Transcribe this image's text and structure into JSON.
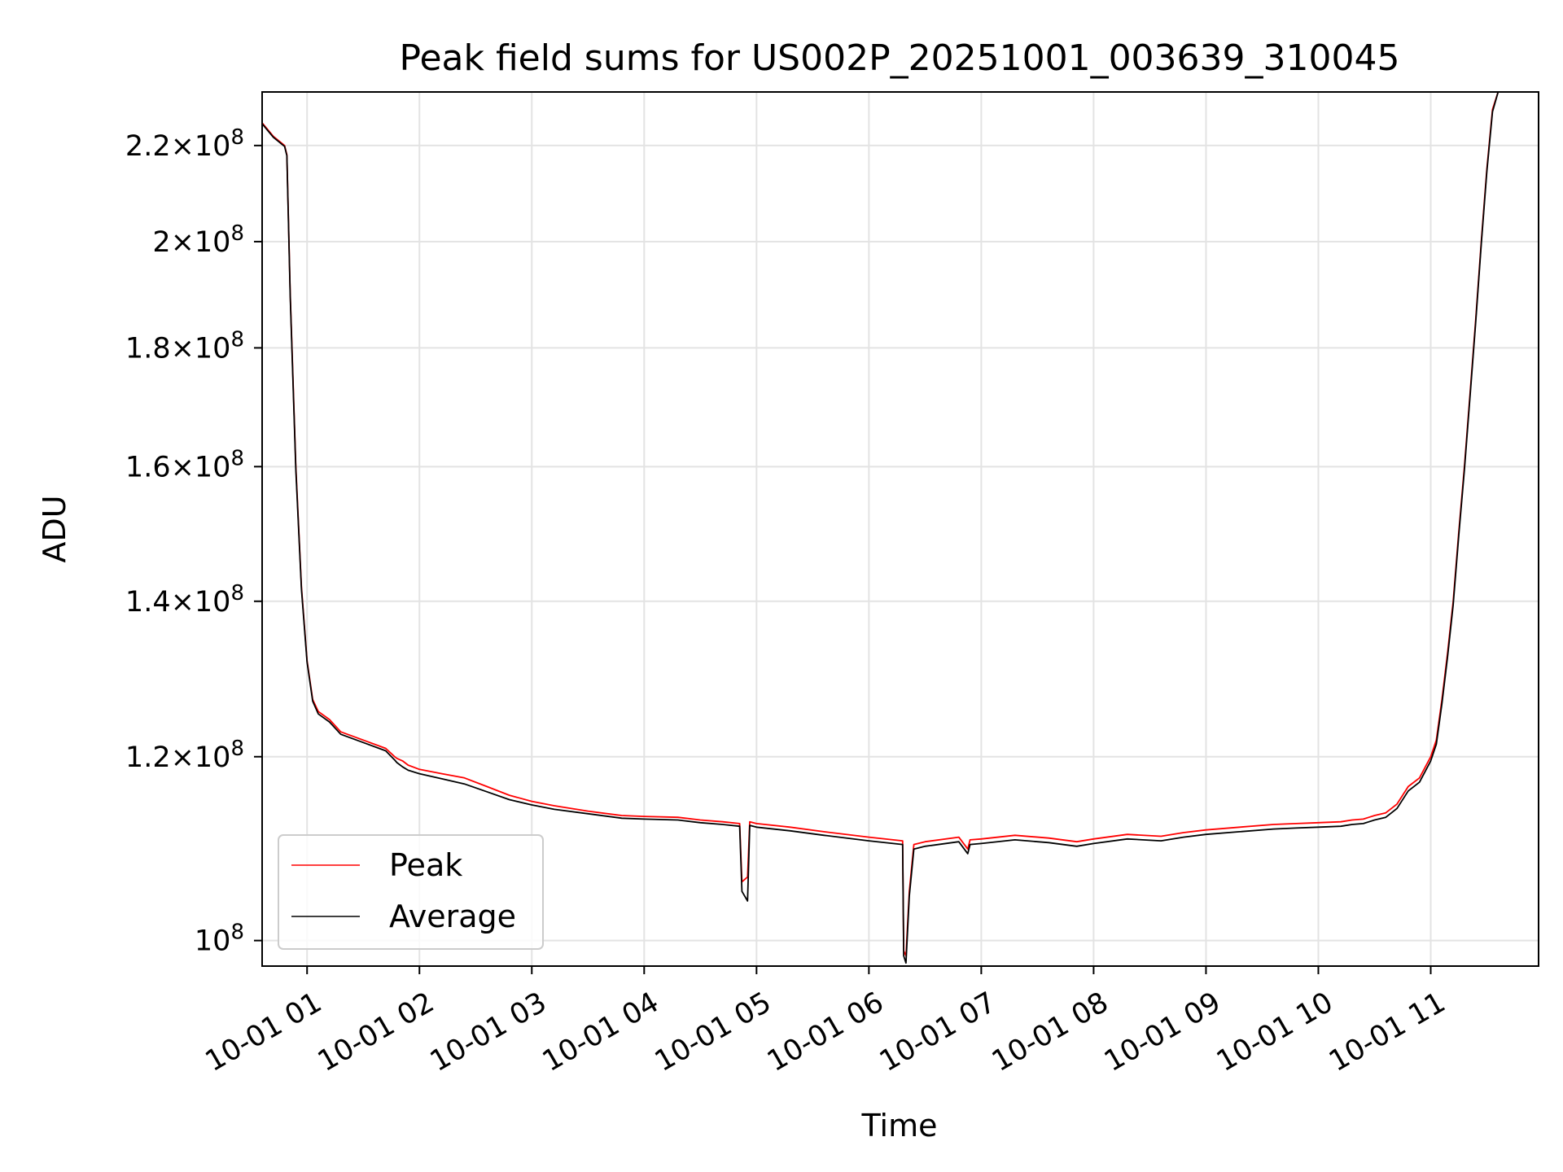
{
  "chart_data": {
    "type": "line",
    "title": "Peak field sums for US002P_20251001_003639_310045",
    "xlabel": "Time",
    "ylabel": "ADU",
    "yscale": "log",
    "xlim": [
      0.6,
      11.96
    ],
    "ylim": [
      97500000.0,
      232000000.0
    ],
    "grid": true,
    "legend_position": "lower-left",
    "x_ticks": [
      {
        "value": 1,
        "label": "10-01 01"
      },
      {
        "value": 2,
        "label": "10-01 02"
      },
      {
        "value": 3,
        "label": "10-01 03"
      },
      {
        "value": 4,
        "label": "10-01 04"
      },
      {
        "value": 5,
        "label": "10-01 05"
      },
      {
        "value": 6,
        "label": "10-01 06"
      },
      {
        "value": 7,
        "label": "10-01 07"
      },
      {
        "value": 8,
        "label": "10-01 08"
      },
      {
        "value": 9,
        "label": "10-01 09"
      },
      {
        "value": 10,
        "label": "10-01 10"
      },
      {
        "value": 11,
        "label": "10-01 11"
      }
    ],
    "y_ticks": [
      {
        "value": 100000000,
        "mantissa": "",
        "exponent": "8"
      },
      {
        "value": 120000000,
        "mantissa": "1.2",
        "exponent": "8"
      },
      {
        "value": 140000000,
        "mantissa": "1.4",
        "exponent": "8"
      },
      {
        "value": 160000000,
        "mantissa": "1.6",
        "exponent": "8"
      },
      {
        "value": 180000000,
        "mantissa": "1.8",
        "exponent": "8"
      },
      {
        "value": 200000000,
        "mantissa": "2",
        "exponent": "8"
      },
      {
        "value": 220000000,
        "mantissa": "2.2",
        "exponent": "8"
      }
    ],
    "series": [
      {
        "name": "Peak",
        "color": "#ff0000",
        "x": [
          0.6,
          0.7,
          0.8,
          0.82,
          0.85,
          0.9,
          0.95,
          1.0,
          1.05,
          1.1,
          1.2,
          1.3,
          1.5,
          1.7,
          1.78,
          1.8,
          1.85,
          1.9,
          2.0,
          2.2,
          2.4,
          2.6,
          2.8,
          3.0,
          3.2,
          3.5,
          3.8,
          4.0,
          4.3,
          4.5,
          4.7,
          4.85,
          4.87,
          4.92,
          4.94,
          5.0,
          5.3,
          5.6,
          6.0,
          6.3,
          6.31,
          6.33,
          6.36,
          6.4,
          6.5,
          6.8,
          6.88,
          6.9,
          7.0,
          7.3,
          7.6,
          7.85,
          8.0,
          8.3,
          8.6,
          8.8,
          9.0,
          9.3,
          9.6,
          9.8,
          10.0,
          10.2,
          10.3,
          10.4,
          10.45,
          10.5,
          10.6,
          10.7,
          10.8,
          10.9,
          11.0,
          11.05,
          11.1,
          11.15,
          11.2,
          11.25,
          11.3,
          11.35,
          11.4,
          11.45,
          11.5,
          11.55,
          11.6,
          11.7,
          11.96
        ],
        "values": [
          225000000,
          222000000,
          220000000,
          218000000,
          190000000,
          160000000,
          142000000,
          132000000,
          127000000,
          125500000,
          124500000,
          123000000,
          122000000,
          121000000,
          120000000,
          119800000,
          119500000,
          119000000,
          118500000,
          118000000,
          117500000,
          116500000,
          115500000,
          114800000,
          114300000,
          113700000,
          113200000,
          113100000,
          113000000,
          112700000,
          112500000,
          112300000,
          106000000,
          106500000,
          112500000,
          112300000,
          111900000,
          111400000,
          110800000,
          110400000,
          99000000,
          98500000,
          105000000,
          110000000,
          110300000,
          110800000,
          109500000,
          110500000,
          110600000,
          111000000,
          110700000,
          110300000,
          110600000,
          111100000,
          110900000,
          111300000,
          111600000,
          111900000,
          112200000,
          112300000,
          112400000,
          112500000,
          112700000,
          112800000,
          113000000,
          113200000,
          113500000,
          114500000,
          116500000,
          117500000,
          120000000,
          122000000,
          127000000,
          133000000,
          140000000,
          150000000,
          160000000,
          172000000,
          185000000,
          200000000,
          215000000,
          228000000,
          232000000,
          232000000,
          232000000
        ]
      },
      {
        "name": "Average",
        "color": "#000000",
        "x": [
          0.6,
          0.7,
          0.8,
          0.82,
          0.85,
          0.9,
          0.95,
          1.0,
          1.05,
          1.1,
          1.2,
          1.3,
          1.5,
          1.7,
          1.78,
          1.8,
          1.85,
          1.9,
          2.0,
          2.2,
          2.4,
          2.6,
          2.8,
          3.0,
          3.2,
          3.5,
          3.8,
          4.0,
          4.3,
          4.5,
          4.7,
          4.85,
          4.87,
          4.92,
          4.94,
          5.0,
          5.3,
          5.6,
          6.0,
          6.3,
          6.31,
          6.33,
          6.36,
          6.4,
          6.5,
          6.8,
          6.88,
          6.9,
          7.0,
          7.3,
          7.6,
          7.85,
          8.0,
          8.3,
          8.6,
          8.8,
          9.0,
          9.3,
          9.6,
          9.8,
          10.0,
          10.2,
          10.3,
          10.4,
          10.45,
          10.5,
          10.6,
          10.7,
          10.8,
          10.9,
          11.0,
          11.05,
          11.1,
          11.15,
          11.2,
          11.25,
          11.3,
          11.35,
          11.4,
          11.45,
          11.5,
          11.55,
          11.6,
          11.7,
          11.96
        ],
        "values": [
          224800000,
          221800000,
          219800000,
          217800000,
          189500000,
          159500000,
          141700000,
          131800000,
          126800000,
          125200000,
          124200000,
          122700000,
          121700000,
          120700000,
          119600000,
          119300000,
          118800000,
          118400000,
          118000000,
          117400000,
          116800000,
          115900000,
          115000000,
          114400000,
          113900000,
          113400000,
          112900000,
          112800000,
          112700000,
          112400000,
          112200000,
          112000000,
          105000000,
          104000000,
          112100000,
          111900000,
          111500000,
          111000000,
          110400000,
          110000000,
          98500000,
          97800000,
          104500000,
          109500000,
          109800000,
          110300000,
          109000000,
          110000000,
          110100000,
          110500000,
          110200000,
          109800000,
          110100000,
          110600000,
          110400000,
          110800000,
          111100000,
          111400000,
          111700000,
          111800000,
          111900000,
          112000000,
          112200000,
          112300000,
          112500000,
          112700000,
          113000000,
          114000000,
          116000000,
          117000000,
          119500000,
          121500000,
          126500000,
          132500000,
          139500000,
          149500000,
          159500000,
          171500000,
          184500000,
          199500000,
          214500000,
          227500000,
          232000000,
          232000000,
          232000000
        ]
      }
    ]
  }
}
